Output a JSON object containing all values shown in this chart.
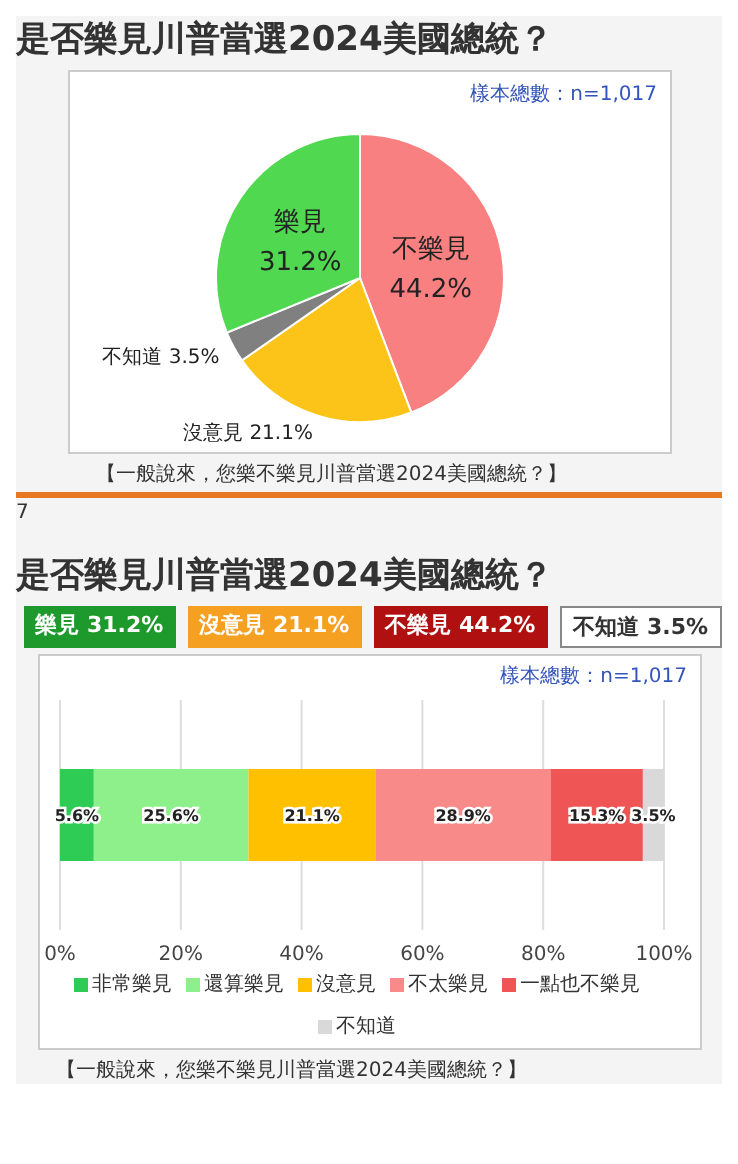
{
  "chart_data": [
    {
      "type": "pie",
      "title": "是否樂見川普當選2024美國總統？",
      "categories": [
        "不樂見",
        "沒意見",
        "不知道",
        "樂見"
      ],
      "values": [
        44.2,
        21.1,
        3.5,
        31.2
      ],
      "value_labels": [
        "44.2%",
        "21.1%",
        "3.5%",
        "31.2%"
      ],
      "colors": [
        "#f88080",
        "#fcc419",
        "#808080",
        "#4fd850"
      ],
      "legend": false,
      "annotations": [
        "樣本總數：n=1,017",
        "【一般說來，您樂不樂見川普當選2024美國總統？】",
        "7"
      ]
    },
    {
      "type": "bar",
      "title": "是否樂見川普當選2024美國總統？",
      "orientation": "horizontal",
      "stacked": true,
      "categories": [
        null
      ],
      "xlim": [
        0,
        100
      ],
      "xticks": [
        {
          "value": 0,
          "label": "0%"
        },
        {
          "value": 20,
          "label": "20%"
        },
        {
          "value": 40,
          "label": "40%"
        },
        {
          "value": 60,
          "label": "60%"
        },
        {
          "value": 80,
          "label": "80%"
        },
        {
          "value": 100,
          "label": "100%"
        }
      ],
      "grid": "x",
      "legend": "bottom",
      "series": [
        {
          "name": "非常樂見",
          "color": "#2ecc55",
          "values": [
            5.6
          ],
          "value_labels": [
            "5.6%"
          ]
        },
        {
          "name": "還算樂見",
          "color": "#8ef08a",
          "values": [
            25.6
          ],
          "value_labels": [
            "25.6%"
          ]
        },
        {
          "name": "沒意見",
          "color": "#ffc000",
          "values": [
            21.1
          ],
          "value_labels": [
            "21.1%"
          ]
        },
        {
          "name": "不太樂見",
          "color": "#f88a8a",
          "values": [
            28.9
          ],
          "value_labels": [
            "28.9%"
          ]
        },
        {
          "name": "一點也不樂見",
          "color": "#f05555",
          "values": [
            15.3
          ],
          "value_labels": [
            "15.3%"
          ]
        },
        {
          "name": "不知道",
          "color": "#d9d9d9",
          "values": [
            3.5
          ],
          "value_labels": [
            "3.5%"
          ]
        }
      ],
      "annotations": [
        "樂見 31.2%",
        "沒意見 21.1%",
        "不樂見 44.2%",
        "不知道 3.5%",
        "樣本總數：n=1,017",
        "【一般說來，您樂不樂見川普當選2024美國總統？】"
      ]
    }
  ]
}
